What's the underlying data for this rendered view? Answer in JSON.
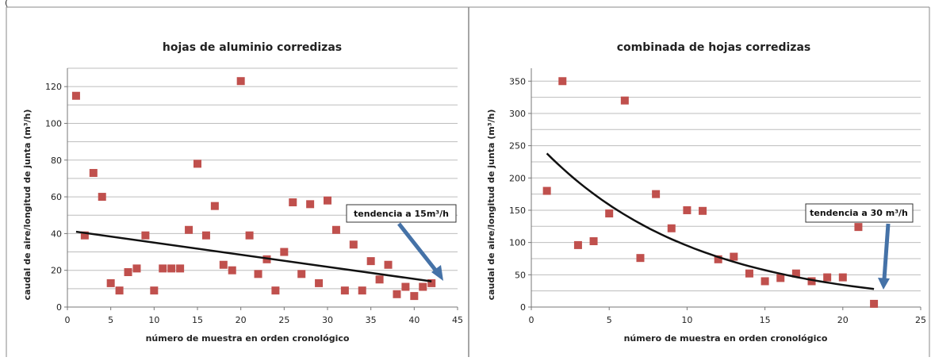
{
  "page": {
    "header_fragment": "("
  },
  "colors": {
    "marker": "#C0504D",
    "trend": "#111111",
    "arrow": "#4572A7",
    "grid": "#BDBDBD",
    "border": "#888888"
  },
  "chart_data": [
    {
      "type": "scatter",
      "title": "hojas de aluminio corredizas",
      "xlabel": "número de muestra en orden cronológico",
      "ylabel": "caudal de aire/longitud de junta (m³/h)",
      "xlim": [
        0,
        45
      ],
      "ylim": [
        0,
        130
      ],
      "xticks": [
        0,
        5,
        10,
        15,
        20,
        25,
        30,
        35,
        40,
        45
      ],
      "yticks": [
        0,
        20,
        40,
        60,
        80,
        100,
        120
      ],
      "grid": "horizontal",
      "legend": "none",
      "annotation": "tendencia a 15m³/h",
      "trendline": {
        "x": [
          1,
          42
        ],
        "y": [
          41,
          14
        ]
      },
      "series": [
        {
          "x": [
            1,
            2,
            3,
            4,
            5,
            6,
            7,
            8,
            9,
            10,
            11,
            12,
            13,
            14,
            15,
            16,
            17,
            18,
            19,
            20,
            21,
            22,
            23,
            24,
            25,
            26,
            27,
            28,
            29,
            30,
            31,
            32,
            33,
            34,
            35,
            36,
            37,
            38,
            39,
            40,
            41,
            42
          ],
          "y": [
            115,
            39,
            73,
            60,
            13,
            9,
            19,
            21,
            39,
            9,
            21,
            21,
            21,
            42,
            78,
            39,
            55,
            23,
            20,
            123,
            39,
            18,
            26,
            9,
            30,
            57,
            18,
            56,
            13,
            58,
            42,
            9,
            34,
            9,
            25,
            15,
            23,
            7,
            11,
            6,
            11,
            13
          ]
        }
      ]
    },
    {
      "type": "scatter",
      "title": "combinada de hojas corredizas",
      "xlabel": "número de muestra en orden cronológico",
      "ylabel": "caudal de aire/longitud de junta (m³/h)",
      "xlim": [
        0,
        25
      ],
      "ylim": [
        0,
        370
      ],
      "xticks": [
        0,
        5,
        10,
        15,
        20,
        25
      ],
      "yticks": [
        0,
        50,
        100,
        150,
        200,
        250,
        300,
        350
      ],
      "grid": "horizontal",
      "legend": "none",
      "annotation": "tendencia a  30 m³/h",
      "trendline": {
        "x": [
          1,
          22
        ],
        "y": [
          238,
          28
        ]
      },
      "series": [
        {
          "x": [
            1,
            2,
            3,
            4,
            5,
            6,
            7,
            8,
            9,
            10,
            11,
            12,
            13,
            14,
            15,
            16,
            17,
            18,
            19,
            20,
            21,
            22
          ],
          "y": [
            180,
            350,
            96,
            102,
            145,
            320,
            76,
            175,
            122,
            150,
            149,
            74,
            78,
            52,
            40,
            45,
            52,
            40,
            46,
            46,
            124,
            5
          ]
        }
      ]
    }
  ]
}
